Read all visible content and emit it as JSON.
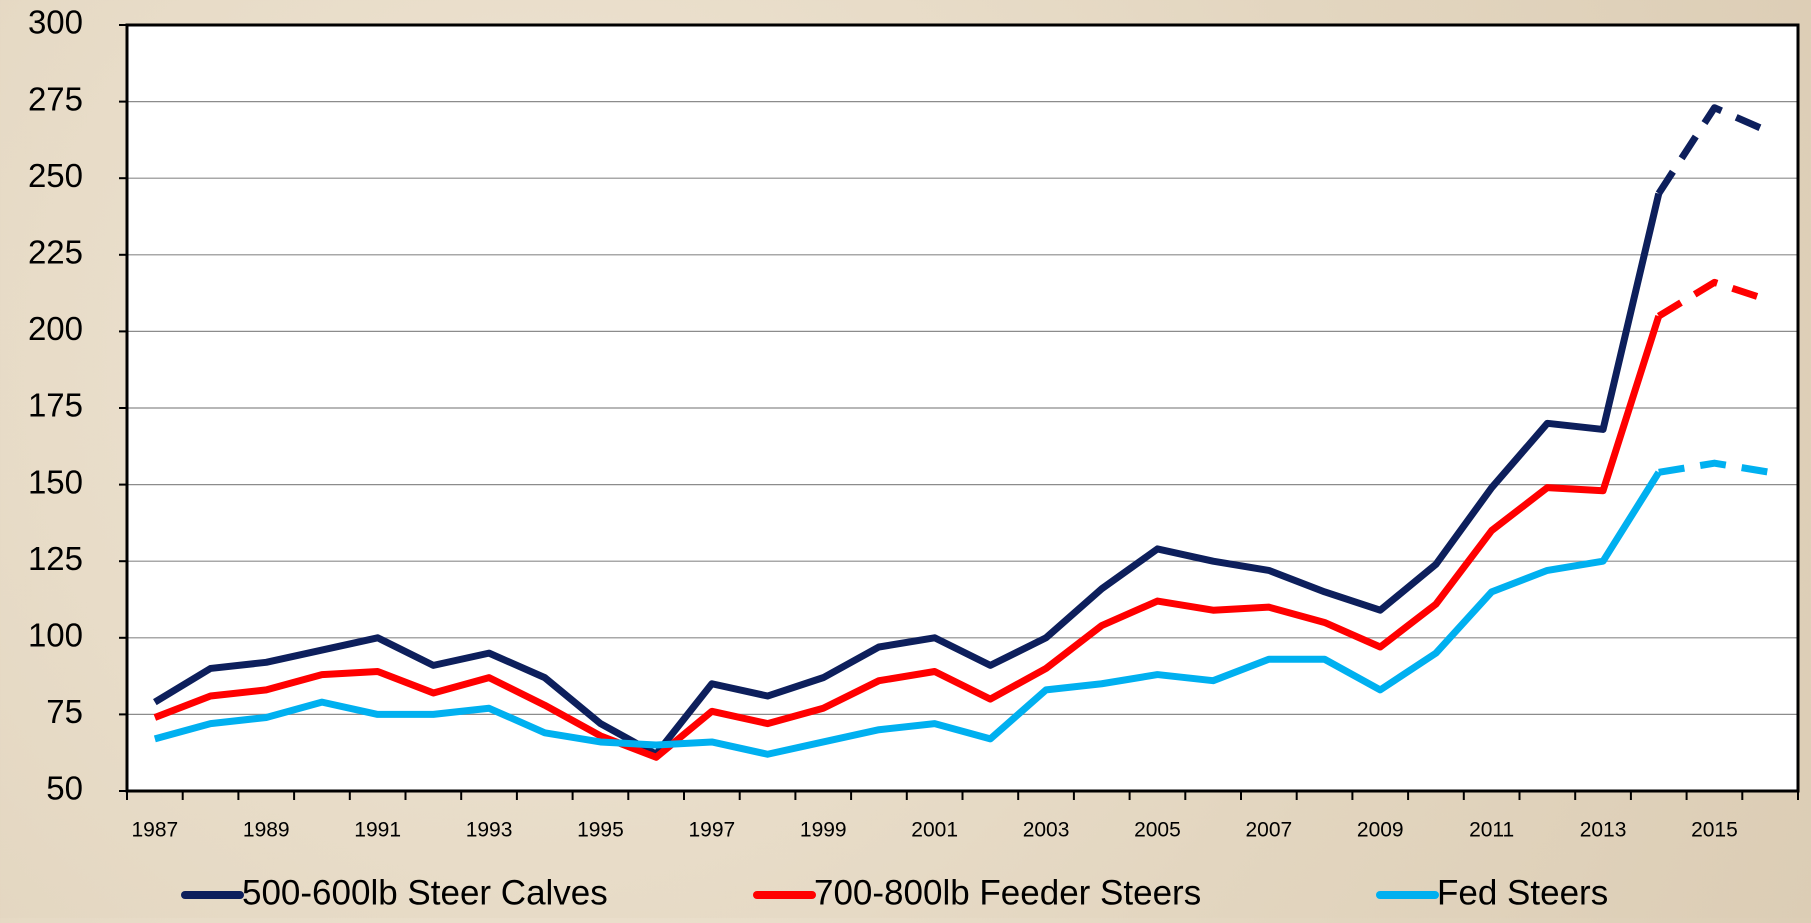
{
  "chart_data": {
    "type": "line",
    "categories": [
      "1987",
      null,
      "1989",
      null,
      "1991",
      null,
      "1993",
      null,
      "1995",
      null,
      "1997",
      null,
      "1999",
      null,
      "2001",
      null,
      "2003",
      null,
      "2005",
      null,
      "2007",
      null,
      "2009",
      null,
      "2011",
      null,
      "2013",
      null,
      "2015",
      null
    ],
    "series": [
      {
        "name": "500-600lb Steer Calves",
        "color": "#0d1f5c",
        "values": [
          79,
          90,
          92,
          96,
          100,
          91,
          95,
          87,
          72,
          62,
          85,
          81,
          87,
          97,
          100,
          91,
          100,
          116,
          129,
          125,
          122,
          115,
          109,
          124,
          149,
          170,
          168,
          245,
          273,
          265
        ]
      },
      {
        "name": "700-800lb Feeder Steers",
        "color": "#ff0000",
        "values": [
          74,
          81,
          83,
          88,
          89,
          82,
          87,
          78,
          68,
          61,
          76,
          72,
          77,
          86,
          89,
          80,
          90,
          104,
          112,
          109,
          110,
          105,
          97,
          111,
          135,
          149,
          148,
          205,
          216,
          210
        ]
      },
      {
        "name": "Fed Steers",
        "color": "#00b0f0",
        "values": [
          67,
          72,
          74,
          79,
          75,
          75,
          77,
          69,
          66,
          65,
          66,
          62,
          66,
          70,
          72,
          67,
          83,
          85,
          88,
          86,
          93,
          93,
          83,
          95,
          115,
          122,
          125,
          154,
          157,
          154
        ]
      }
    ],
    "dash_from_index": 27,
    "ylim": [
      50,
      300
    ],
    "yticks": [
      50,
      75,
      100,
      125,
      150,
      175,
      200,
      225,
      250,
      275,
      300
    ],
    "grid": true,
    "legend": "bottom"
  }
}
